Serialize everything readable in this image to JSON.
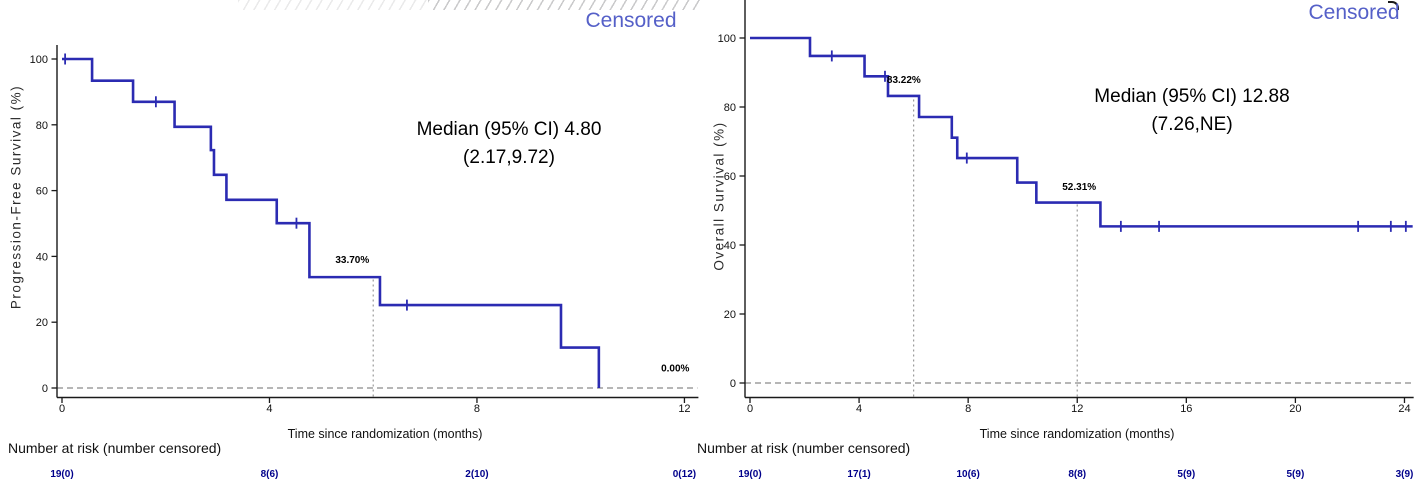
{
  "colors": {
    "curve": "#2b2bb2",
    "censored_text": "#5560c8",
    "risk_text": "#00008b",
    "axis": "#1a1a1a",
    "zero_line": "#8a8a8a",
    "landmark_line": "#9a9a9a"
  },
  "chart_data": [
    {
      "type": "line",
      "subtype": "kaplan-meier-step",
      "ylabel": "Progression-Free Survival (%)",
      "xlabel": "Time since randomization (months)",
      "censored_label": "Censored",
      "median_label": [
        "Median (95% CI) 4.80",
        "(2.17,9.72)"
      ],
      "risk_header": "Number at risk (number censored)",
      "xlim": [
        0,
        12.25
      ],
      "ylim": [
        0,
        100
      ],
      "xticks": [
        0,
        4,
        8,
        12
      ],
      "yticks": [
        0,
        20,
        40,
        60,
        80,
        100
      ],
      "start": [
        0,
        100
      ],
      "drops": [
        [
          0.58,
          93.4
        ],
        [
          1.37,
          87.0
        ],
        [
          2.17,
          79.4
        ],
        [
          2.87,
          72.3
        ],
        [
          2.93,
          64.8
        ],
        [
          3.17,
          57.2
        ],
        [
          4.14,
          50.1
        ],
        [
          4.77,
          33.7
        ],
        [
          6.13,
          25.2
        ],
        [
          9.62,
          12.3
        ],
        [
          10.35,
          0
        ]
      ],
      "end_time": 10.35,
      "censor_marks": [
        [
          0.06,
          100
        ],
        [
          1.81,
          87.0
        ],
        [
          4.52,
          50.1
        ],
        [
          6.65,
          25.2
        ]
      ],
      "landmark_lines": [
        {
          "t": 6,
          "to": 33.7
        }
      ],
      "annotations": [
        {
          "label": "33.70%",
          "t": 5.27,
          "v": 38.0
        },
        {
          "label": "0.00%",
          "t": 11.55,
          "v": 5.0
        }
      ],
      "risk": [
        {
          "t": 0,
          "label": "19(0)"
        },
        {
          "t": 4,
          "label": "8(6)"
        },
        {
          "t": 8,
          "label": "2(10)"
        },
        {
          "t": 12,
          "label": "0(12)"
        }
      ]
    },
    {
      "type": "line",
      "subtype": "kaplan-meier-step",
      "ylabel": "Overall Survival (%)",
      "xlabel": "Time since randomization (months)",
      "censored_label": "Censored",
      "median_label": [
        "Median (95% CI) 12.88",
        "(7.26,NE)"
      ],
      "risk_header": "Number at risk (number censored)",
      "xlim": [
        0,
        24.3
      ],
      "ylim": [
        0,
        100
      ],
      "xticks": [
        0,
        4,
        8,
        12,
        16,
        20,
        24
      ],
      "yticks": [
        0,
        20,
        40,
        60,
        80,
        100
      ],
      "start": [
        0,
        100
      ],
      "drops": [
        [
          2.2,
          94.8
        ],
        [
          4.2,
          88.9
        ],
        [
          5.06,
          83.22
        ],
        [
          6.2,
          77.1
        ],
        [
          7.4,
          71.1
        ],
        [
          7.6,
          65.2
        ],
        [
          9.8,
          58.1
        ],
        [
          10.5,
          52.31
        ],
        [
          12.85,
          45.4
        ]
      ],
      "end_time": 24.3,
      "censor_marks": [
        [
          3.0,
          94.8
        ],
        [
          4.95,
          88.9
        ],
        [
          7.95,
          65.2
        ],
        [
          13.6,
          45.4
        ],
        [
          15.0,
          45.4
        ],
        [
          22.3,
          45.4
        ],
        [
          23.5,
          45.4
        ],
        [
          24.05,
          45.4
        ]
      ],
      "landmark_lines": [
        {
          "t": 6,
          "to": 83.22
        },
        {
          "t": 12,
          "to": 52.31
        }
      ],
      "annotations": [
        {
          "label": "83.22%",
          "t": 5.02,
          "v": 87.0
        },
        {
          "label": "52.31%",
          "t": 11.45,
          "v": 56.0
        }
      ],
      "risk": [
        {
          "t": 0,
          "label": "19(0)"
        },
        {
          "t": 4,
          "label": "17(1)"
        },
        {
          "t": 8,
          "label": "10(6)"
        },
        {
          "t": 12,
          "label": "8(8)"
        },
        {
          "t": 16,
          "label": "5(9)"
        },
        {
          "t": 20,
          "label": "5(9)"
        },
        {
          "t": 24,
          "label": "3(9)"
        }
      ]
    }
  ]
}
